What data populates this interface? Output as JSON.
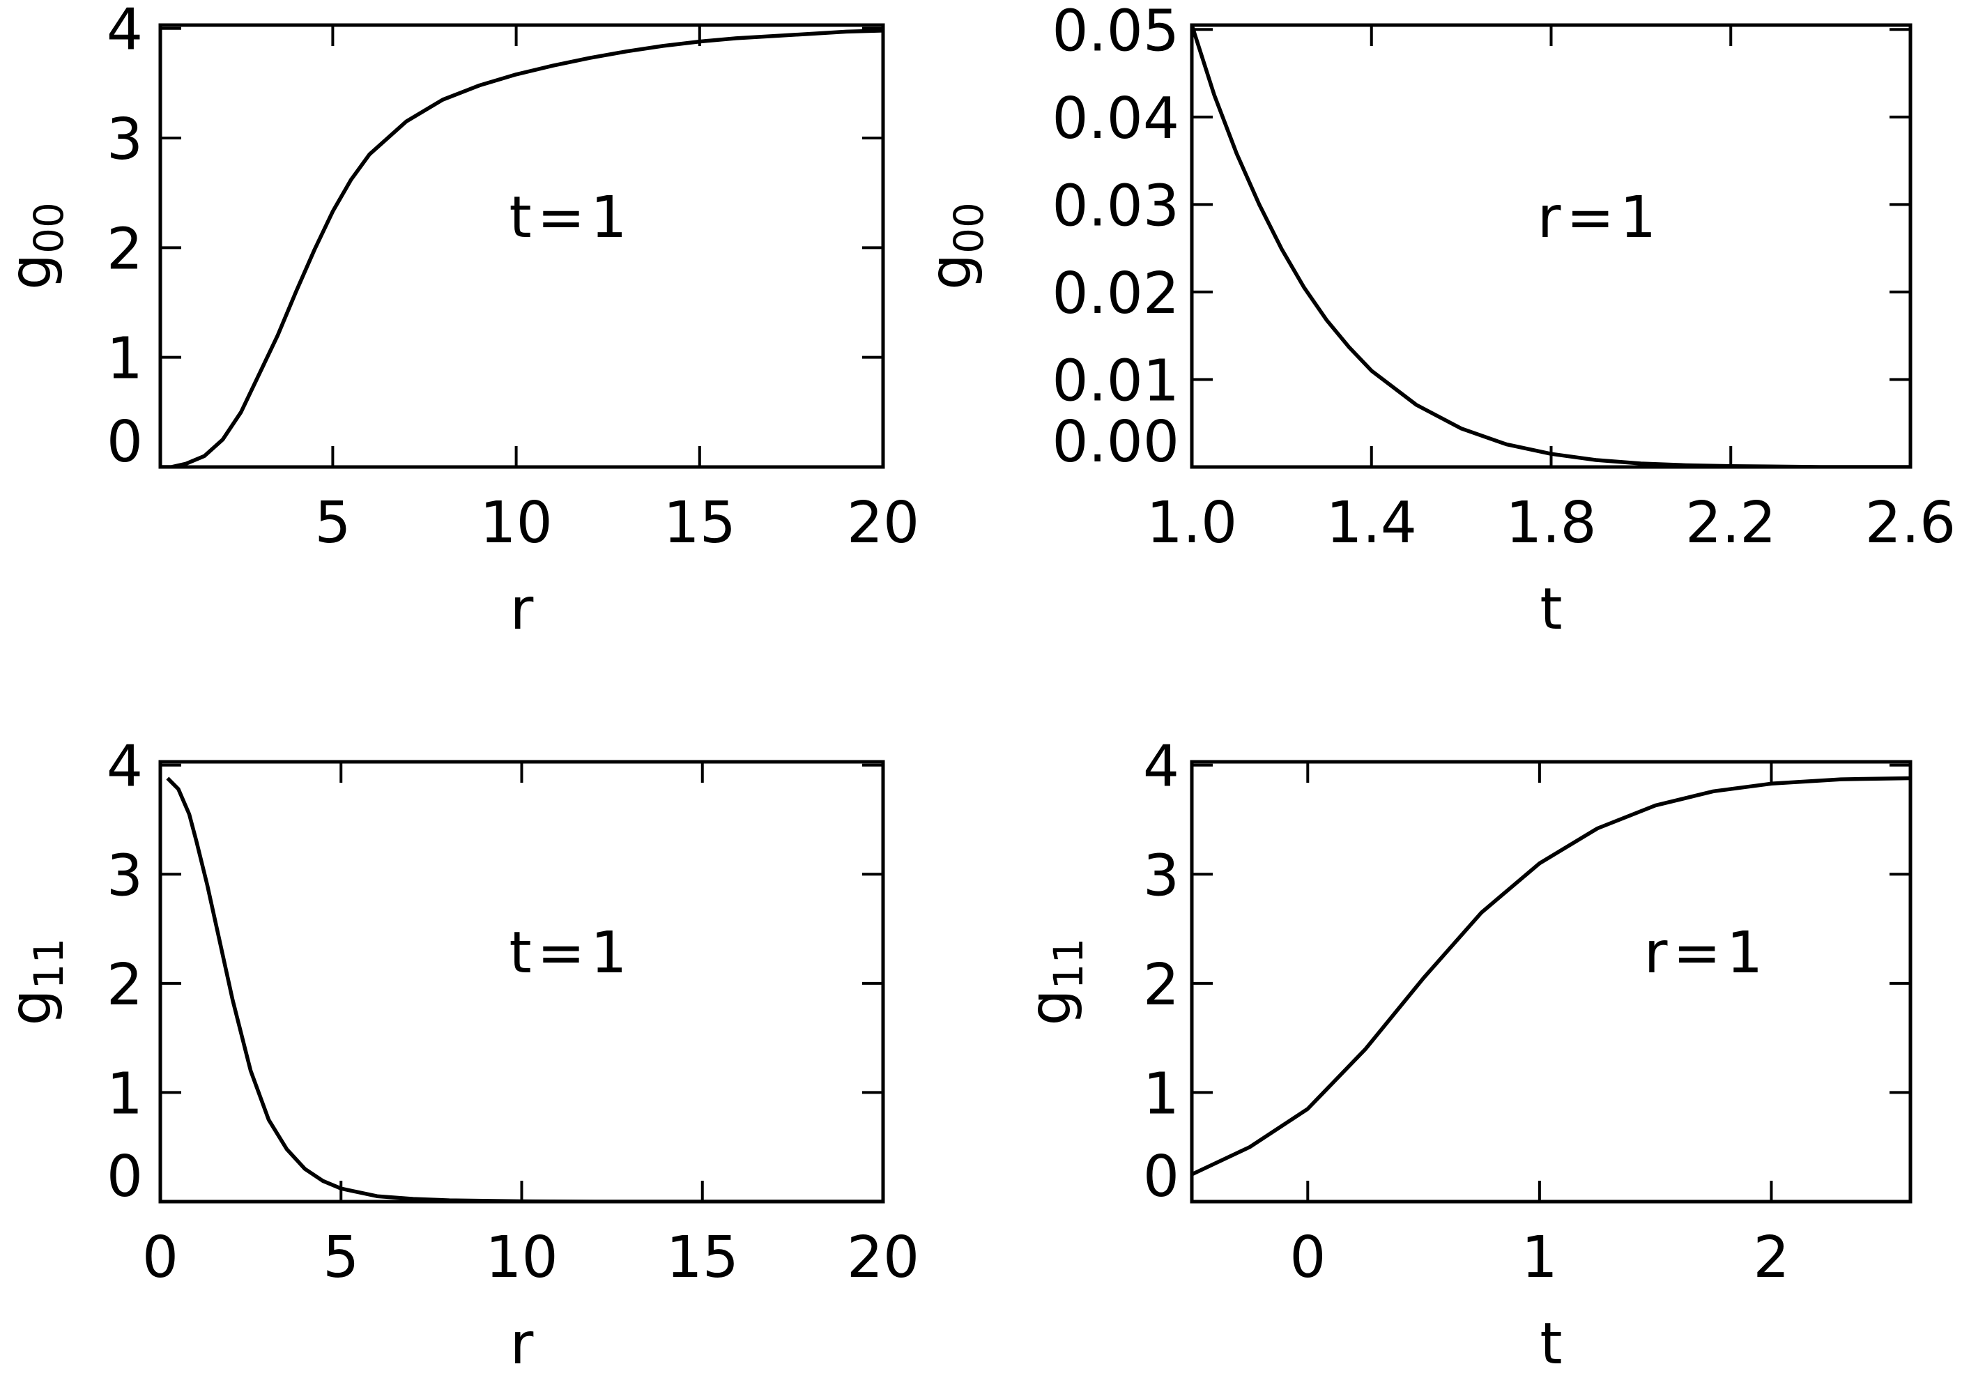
{
  "chart_data": [
    {
      "type": "line",
      "annotation": "t=1",
      "xlabel": "r",
      "ylabel": "g",
      "ylabel_subscript": "00",
      "xlim": [
        0.3,
        20
      ],
      "xticks": [
        5,
        10,
        15,
        20
      ],
      "ylim": [
        0,
        4.03
      ],
      "yticks": [
        0,
        1,
        2,
        3,
        4
      ],
      "color": "#000000",
      "x": [
        0.3,
        0.6,
        1.0,
        1.5,
        2.0,
        2.5,
        3.0,
        3.5,
        4.0,
        4.5,
        5.0,
        5.5,
        6.0,
        7.0,
        8.0,
        9.0,
        10.0,
        11.0,
        12.0,
        13.0,
        14.0,
        15.0,
        16.0,
        17.0,
        18.0,
        19.0,
        20.0
      ],
      "values": [
        0.0,
        0.0,
        0.03,
        0.1,
        0.25,
        0.5,
        0.85,
        1.2,
        1.6,
        1.98,
        2.33,
        2.62,
        2.85,
        3.15,
        3.35,
        3.48,
        3.58,
        3.66,
        3.73,
        3.79,
        3.84,
        3.88,
        3.91,
        3.93,
        3.95,
        3.97,
        3.98
      ]
    },
    {
      "type": "line",
      "annotation": "r=1",
      "xlabel": "t",
      "ylabel": "g",
      "ylabel_subscript": "00",
      "xlim": [
        1.0,
        2.6
      ],
      "xticks": [
        {
          "value": 1.0,
          "label": "1.0"
        },
        1.4,
        1.8,
        2.2,
        2.6
      ],
      "ylim": [
        0,
        0.0505
      ],
      "yticks": [
        {
          "value": 0,
          "label": "0.00"
        },
        0.01,
        0.02,
        0.03,
        0.04,
        0.05
      ],
      "color": "#000000",
      "x": [
        1.0,
        1.05,
        1.1,
        1.15,
        1.2,
        1.25,
        1.3,
        1.35,
        1.4,
        1.5,
        1.6,
        1.7,
        1.8,
        1.9,
        2.0,
        2.1,
        2.2,
        2.4,
        2.6
      ],
      "values": [
        0.0505,
        0.0425,
        0.0358,
        0.03,
        0.0249,
        0.0205,
        0.0168,
        0.0137,
        0.011,
        0.0071,
        0.0044,
        0.0026,
        0.0015,
        0.0008,
        0.0004,
        0.0002,
        0.0001,
        0.0,
        0.0
      ]
    },
    {
      "type": "line",
      "annotation": "t=1",
      "xlabel": "r",
      "ylabel": "g",
      "ylabel_subscript": "11",
      "xlim": [
        0,
        20
      ],
      "xticks": [
        0,
        5,
        10,
        15,
        20
      ],
      "ylim": [
        0,
        4.03
      ],
      "yticks": [
        0,
        1,
        2,
        3,
        4
      ],
      "color": "#000000",
      "x": [
        0.2,
        0.5,
        0.8,
        1.0,
        1.3,
        1.6,
        2.0,
        2.5,
        3.0,
        3.5,
        4.0,
        4.5,
        5.0,
        6.0,
        7.0,
        8.0,
        10.0,
        12.0,
        15.0,
        20.0
      ],
      "values": [
        3.88,
        3.78,
        3.55,
        3.3,
        2.9,
        2.45,
        1.85,
        1.2,
        0.75,
        0.48,
        0.3,
        0.19,
        0.12,
        0.05,
        0.025,
        0.012,
        0.003,
        0.0,
        0.0,
        0.0
      ]
    },
    {
      "type": "line",
      "annotation": "r=1",
      "xlabel": "t",
      "ylabel": "g",
      "ylabel_subscript": "11",
      "xlim": [
        -0.5,
        2.6
      ],
      "xticks": [
        0,
        1,
        2
      ],
      "ylim": [
        0,
        4.03
      ],
      "yticks": [
        0,
        1,
        2,
        3,
        4
      ],
      "color": "#000000",
      "x": [
        -0.5,
        -0.25,
        0.0,
        0.25,
        0.5,
        0.75,
        1.0,
        1.25,
        1.5,
        1.75,
        2.0,
        2.3,
        2.6
      ],
      "values": [
        0.25,
        0.5,
        0.85,
        1.4,
        2.05,
        2.65,
        3.1,
        3.42,
        3.63,
        3.76,
        3.83,
        3.87,
        3.88
      ]
    }
  ]
}
